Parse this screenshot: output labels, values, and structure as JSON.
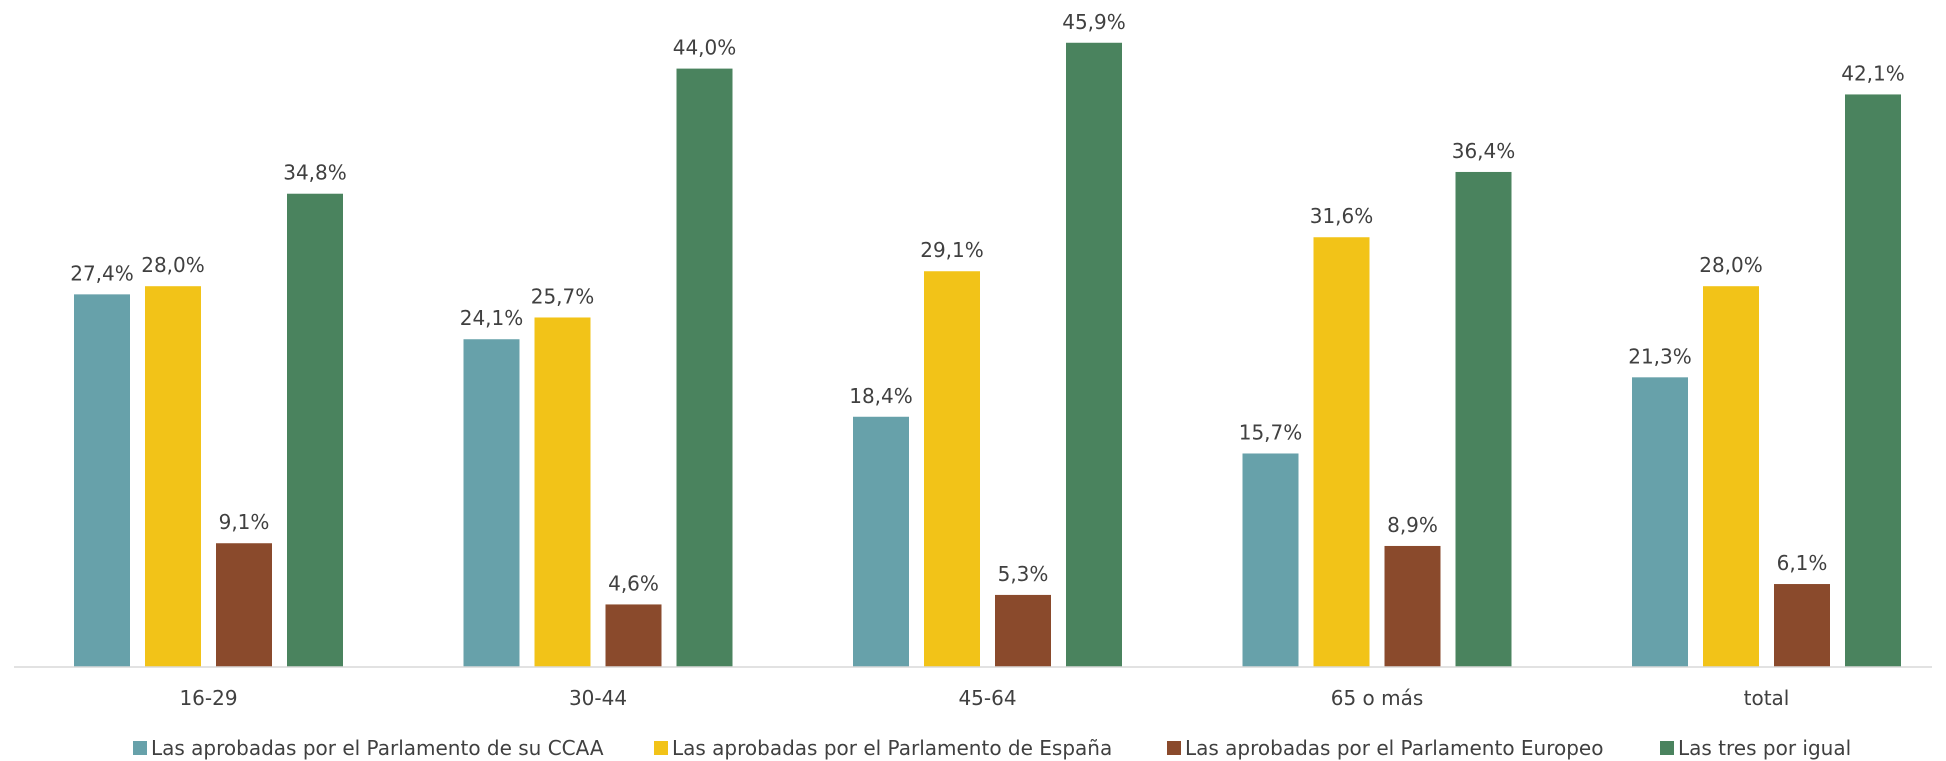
{
  "chart_data": {
    "type": "bar",
    "categories": [
      "16-29",
      "30-44",
      "45-64",
      "65 o más",
      "total"
    ],
    "series": [
      {
        "name": "Las aprobadas por el Parlamento de su CCAA",
        "color": "#67a1aa",
        "values": [
          27.4,
          24.1,
          18.4,
          15.7,
          21.3
        ],
        "labels": [
          "27,4%",
          "24,1%",
          "18,4%",
          "15,7%",
          "21,3%"
        ]
      },
      {
        "name": "Las aprobadas por el Parlamento de España",
        "color": "#f2c318",
        "values": [
          28.0,
          25.7,
          29.1,
          31.6,
          28.0
        ],
        "labels": [
          "28,0%",
          "25,7%",
          "29,1%",
          "31,6%",
          "28,0%"
        ]
      },
      {
        "name": "Las aprobadas por el Parlamento Europeo",
        "color": "#8a4a2c",
        "values": [
          9.1,
          4.6,
          5.3,
          8.9,
          6.1
        ],
        "labels": [
          "9,1%",
          "4,6%",
          "5,3%",
          "8,9%",
          "6,1%"
        ]
      },
      {
        "name": "Las tres por igual",
        "color": "#4a835e",
        "values": [
          34.8,
          44.0,
          45.9,
          36.4,
          42.1
        ],
        "labels": [
          "34,8%",
          "44,0%",
          "45,9%",
          "36,4%",
          "42,1%"
        ]
      }
    ],
    "ylim": [
      0,
      50
    ],
    "grid": false,
    "legend": "bottom"
  }
}
